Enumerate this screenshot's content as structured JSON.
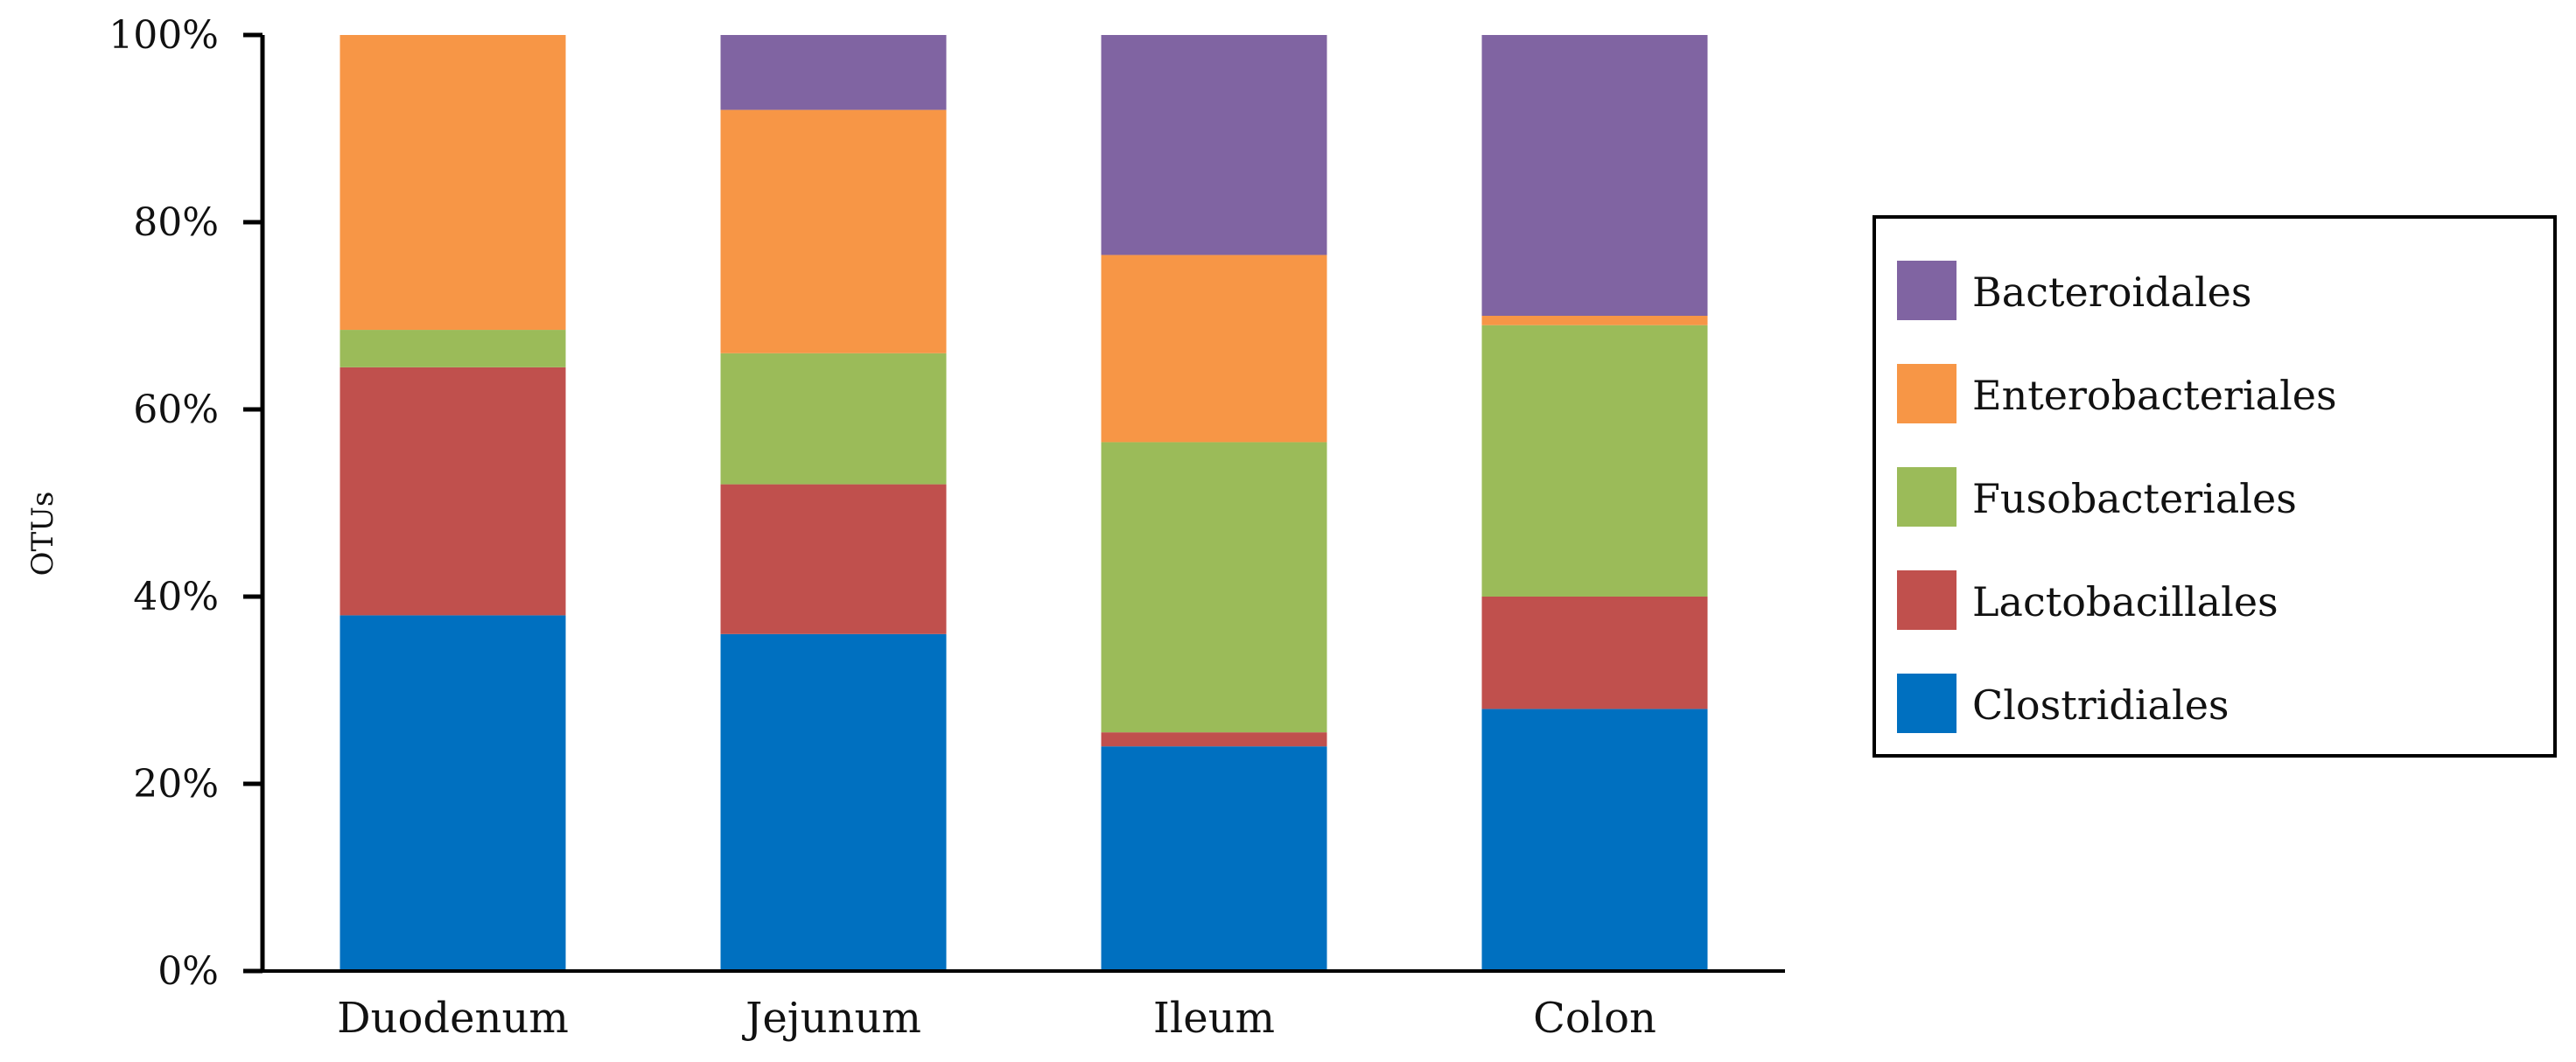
{
  "chart_data": {
    "type": "bar",
    "stacked": true,
    "percent_stacked": true,
    "title": "",
    "xlabel": "",
    "ylabel": "OTUs",
    "ylim": [
      0,
      100
    ],
    "yticks": [
      "0%",
      "20%",
      "40%",
      "60%",
      "80%",
      "100%"
    ],
    "grid": false,
    "legend_position": "right",
    "categories": [
      "Duodenum",
      "Jejunum",
      "Ileum",
      "Colon"
    ],
    "series": [
      {
        "name": "Clostridiales",
        "color": "#0070C0",
        "values": [
          38,
          36,
          24,
          28
        ]
      },
      {
        "name": "Lactobacillales",
        "color": "#C0504D",
        "values": [
          26.5,
          16,
          1.5,
          12
        ]
      },
      {
        "name": "Fusobacteriales",
        "color": "#9BBB59",
        "values": [
          4,
          14,
          31,
          29
        ]
      },
      {
        "name": "Enterobacteriales",
        "color": "#F79646",
        "values": [
          31.5,
          26,
          20,
          1
        ]
      },
      {
        "name": "Bacteroidales",
        "color": "#8064A2",
        "values": [
          0,
          8,
          23.5,
          30
        ]
      }
    ],
    "legend_order": [
      "Bacteroidales",
      "Enterobacteriales",
      "Fusobacteriales",
      "Lactobacillales",
      "Clostridiales"
    ]
  }
}
